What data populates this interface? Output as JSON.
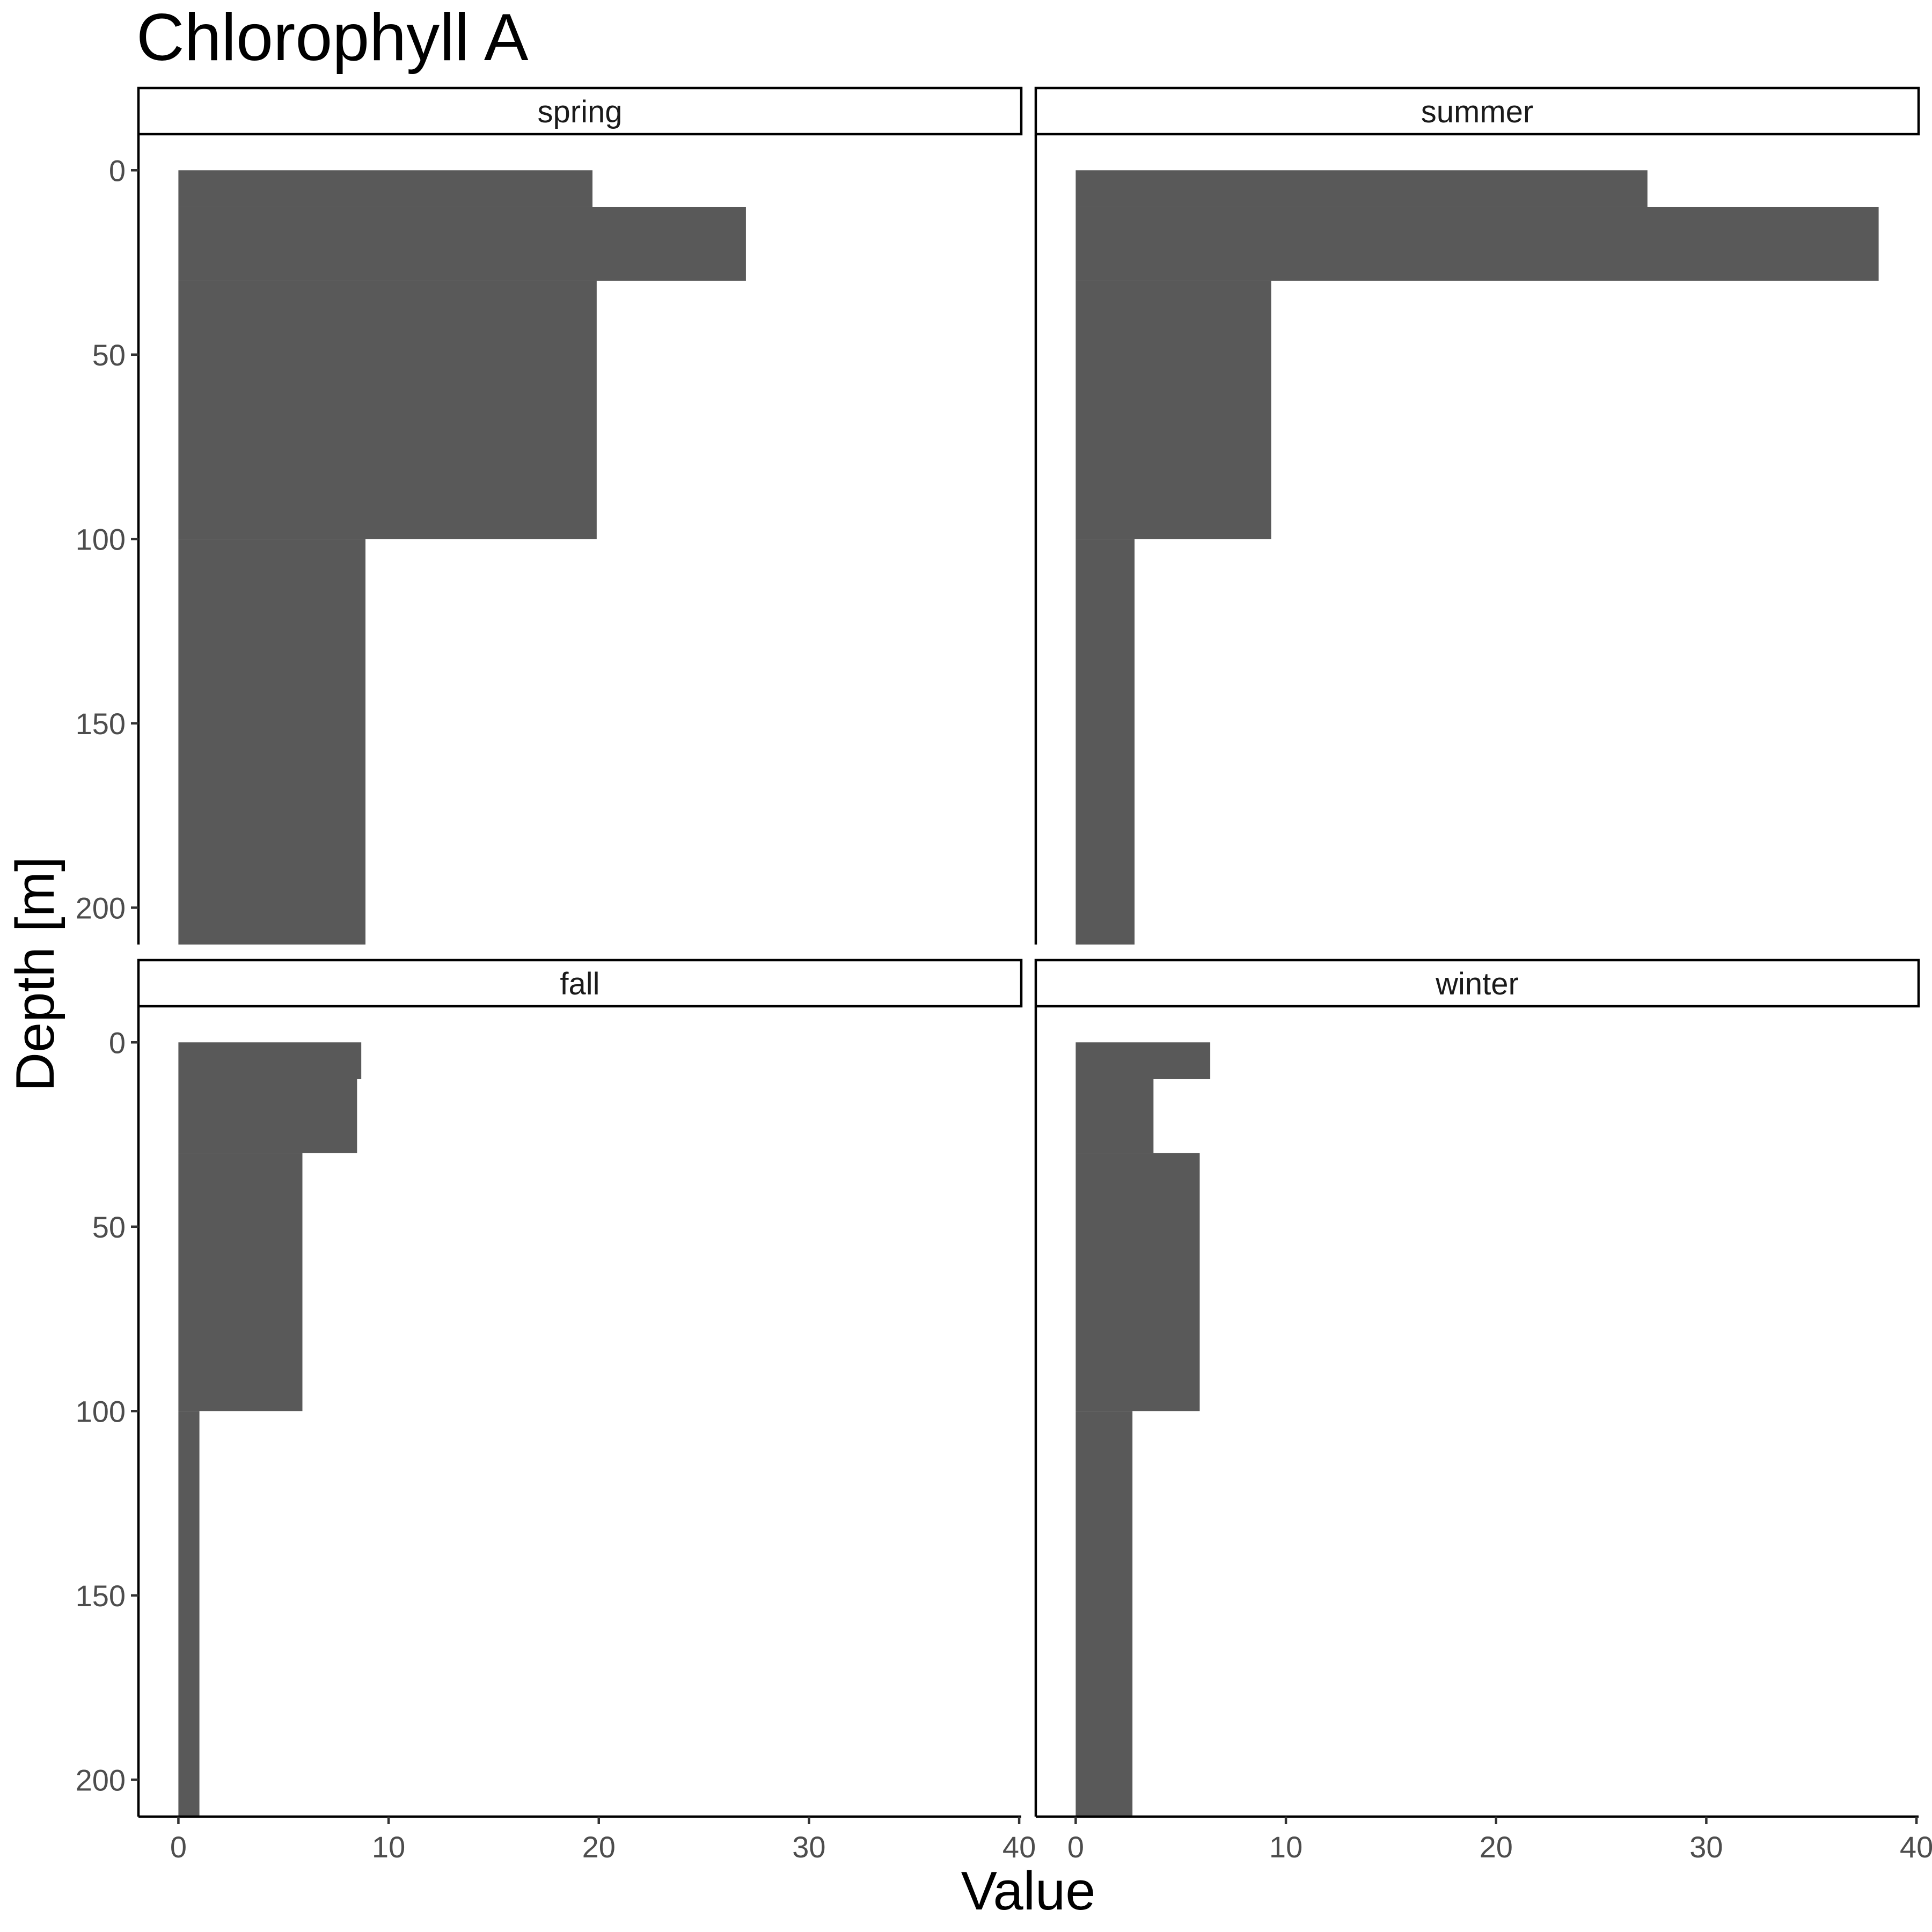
{
  "chart_data": {
    "type": "bar",
    "orientation": "horizontal",
    "title": "Chlorophyll A",
    "xlabel": "Value",
    "ylabel": "Depth [m]",
    "xlim": [
      -1.9,
      40.1
    ],
    "ylim": [
      -9.5,
      210
    ],
    "y_reversed": true,
    "grid": false,
    "x_ticks": [
      0,
      10,
      20,
      30,
      40
    ],
    "y_ticks": [
      0,
      50,
      100,
      150,
      200
    ],
    "bar_color": "#595959",
    "facets": [
      {
        "label": "spring",
        "bars": [
          {
            "depth_from": 0,
            "depth_to": 10,
            "value": 19.7
          },
          {
            "depth_from": 10,
            "depth_to": 30,
            "value": 27.0
          },
          {
            "depth_from": 30,
            "depth_to": 100,
            "value": 19.9
          },
          {
            "depth_from": 100,
            "depth_to": 210,
            "value": 8.9
          }
        ]
      },
      {
        "label": "summer",
        "bars": [
          {
            "depth_from": 0,
            "depth_to": 10,
            "value": 27.2
          },
          {
            "depth_from": 10,
            "depth_to": 30,
            "value": 38.2
          },
          {
            "depth_from": 30,
            "depth_to": 100,
            "value": 9.3
          },
          {
            "depth_from": 100,
            "depth_to": 210,
            "value": 2.8
          }
        ]
      },
      {
        "label": "fall",
        "bars": [
          {
            "depth_from": 0,
            "depth_to": 10,
            "value": 8.7
          },
          {
            "depth_from": 10,
            "depth_to": 30,
            "value": 8.5
          },
          {
            "depth_from": 30,
            "depth_to": 100,
            "value": 5.9
          },
          {
            "depth_from": 100,
            "depth_to": 210,
            "value": 1.0
          }
        ]
      },
      {
        "label": "winter",
        "bars": [
          {
            "depth_from": 0,
            "depth_to": 10,
            "value": 6.4
          },
          {
            "depth_from": 10,
            "depth_to": 30,
            "value": 3.7
          },
          {
            "depth_from": 30,
            "depth_to": 100,
            "value": 5.9
          },
          {
            "depth_from": 100,
            "depth_to": 210,
            "value": 2.7
          }
        ]
      }
    ]
  }
}
